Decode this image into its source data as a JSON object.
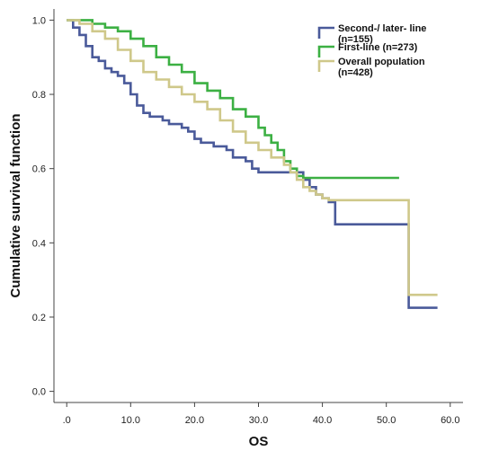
{
  "chart_data": {
    "type": "line",
    "title": "",
    "xlabel": "OS",
    "ylabel": "Cumulative survival function",
    "xlim": [
      -2,
      62
    ],
    "ylim": [
      -0.03,
      1.03
    ],
    "x_ticks": [
      ".0",
      "10.0",
      "20.0",
      "30.0",
      "40.0",
      "50.0",
      "60.0"
    ],
    "x_tick_values": [
      0,
      10,
      20,
      30,
      40,
      50,
      60
    ],
    "y_ticks": [
      "0.0",
      "0.2",
      "0.4",
      "0.6",
      "0.8",
      "1.0"
    ],
    "y_tick_values": [
      0,
      0.2,
      0.4,
      0.6,
      0.8,
      1.0
    ],
    "legend_position": "top-right",
    "series": [
      {
        "name": "Second-/ later- line (n=155)",
        "legend_lines": [
          "Second-/ later- line",
          "(n=155)"
        ],
        "color": "#4a5a9a",
        "points": [
          [
            0,
            1.0
          ],
          [
            1,
            0.98
          ],
          [
            2,
            0.96
          ],
          [
            3,
            0.93
          ],
          [
            4,
            0.9
          ],
          [
            5,
            0.89
          ],
          [
            6,
            0.87
          ],
          [
            7,
            0.86
          ],
          [
            8,
            0.85
          ],
          [
            9,
            0.83
          ],
          [
            10,
            0.8
          ],
          [
            11,
            0.77
          ],
          [
            12,
            0.75
          ],
          [
            13,
            0.74
          ],
          [
            15,
            0.73
          ],
          [
            16,
            0.72
          ],
          [
            18,
            0.71
          ],
          [
            19,
            0.7
          ],
          [
            20,
            0.68
          ],
          [
            21,
            0.67
          ],
          [
            23,
            0.66
          ],
          [
            25,
            0.65
          ],
          [
            26,
            0.63
          ],
          [
            28,
            0.62
          ],
          [
            29,
            0.6
          ],
          [
            30,
            0.59
          ],
          [
            35,
            0.59
          ],
          [
            37,
            0.57
          ],
          [
            38,
            0.55
          ],
          [
            39,
            0.53
          ],
          [
            40,
            0.52
          ],
          [
            41,
            0.51
          ],
          [
            42,
            0.45
          ],
          [
            53.5,
            0.45
          ],
          [
            53.5,
            0.225
          ],
          [
            58,
            0.225
          ]
        ]
      },
      {
        "name": "First-line (n=273)",
        "legend_lines": [
          "First-line (n=273)"
        ],
        "color": "#3cb043",
        "points": [
          [
            0,
            1.0
          ],
          [
            2,
            1.0
          ],
          [
            4,
            0.99
          ],
          [
            6,
            0.98
          ],
          [
            8,
            0.97
          ],
          [
            10,
            0.95
          ],
          [
            12,
            0.93
          ],
          [
            14,
            0.9
          ],
          [
            16,
            0.88
          ],
          [
            18,
            0.86
          ],
          [
            20,
            0.83
          ],
          [
            22,
            0.81
          ],
          [
            24,
            0.79
          ],
          [
            26,
            0.76
          ],
          [
            28,
            0.74
          ],
          [
            30,
            0.71
          ],
          [
            31,
            0.69
          ],
          [
            32,
            0.67
          ],
          [
            33,
            0.65
          ],
          [
            34,
            0.62
          ],
          [
            35,
            0.6
          ],
          [
            36,
            0.58
          ],
          [
            37,
            0.575
          ],
          [
            52,
            0.575
          ]
        ]
      },
      {
        "name": "Overall population (n=428)",
        "legend_lines": [
          "Overall population",
          "(n=428)"
        ],
        "color": "#cfc88a",
        "points": [
          [
            0,
            1.0
          ],
          [
            2,
            0.99
          ],
          [
            4,
            0.97
          ],
          [
            6,
            0.95
          ],
          [
            8,
            0.92
          ],
          [
            10,
            0.89
          ],
          [
            12,
            0.86
          ],
          [
            14,
            0.84
          ],
          [
            16,
            0.82
          ],
          [
            18,
            0.8
          ],
          [
            20,
            0.78
          ],
          [
            22,
            0.76
          ],
          [
            24,
            0.73
          ],
          [
            26,
            0.7
          ],
          [
            28,
            0.67
          ],
          [
            30,
            0.65
          ],
          [
            32,
            0.63
          ],
          [
            34,
            0.61
          ],
          [
            35,
            0.59
          ],
          [
            36,
            0.57
          ],
          [
            37,
            0.55
          ],
          [
            38,
            0.54
          ],
          [
            39,
            0.53
          ],
          [
            40,
            0.52
          ],
          [
            41,
            0.515
          ],
          [
            53.5,
            0.515
          ],
          [
            53.5,
            0.26
          ],
          [
            58,
            0.26
          ]
        ]
      }
    ]
  }
}
